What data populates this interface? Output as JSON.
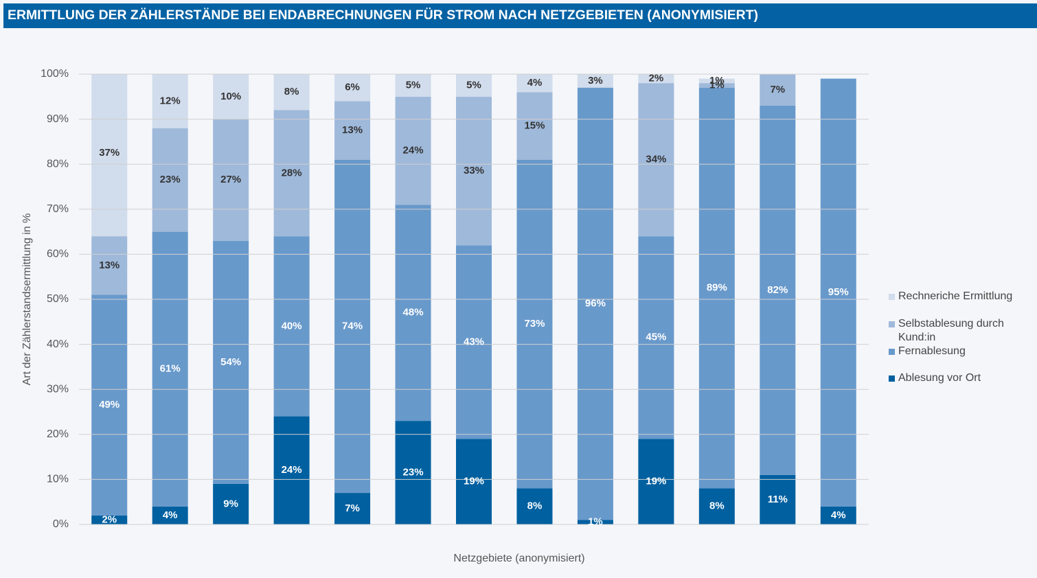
{
  "chart_data": {
    "type": "stacked_bar",
    "title": "ERMITTLUNG DER ZÄHLERSTÄNDE BEI ENDABRECHNUNGEN FÜR STROM NACH NETZGEBIETEN (ANONYMISIERT)",
    "xlabel": "Netzgebiete (anonymisiert)",
    "ylabel": "Art der Zählerstandsermittlung in %",
    "categories": [
      null,
      null,
      null,
      null,
      null,
      null,
      null,
      null,
      null,
      null,
      null,
      null,
      null
    ],
    "series": [
      {
        "name": "Ablesung vor Ort",
        "color": "#0060a0",
        "label_color": "#ffffff",
        "values": [
          2,
          4,
          9,
          24,
          7,
          23,
          19,
          8,
          1,
          19,
          8,
          11,
          4
        ],
        "value_labels": [
          "2%",
          "4%",
          "9%",
          "24%",
          "7%",
          "23%",
          "19%",
          "8%",
          "1%",
          "19%",
          "8%",
          "11%",
          "4%"
        ]
      },
      {
        "name": "Fernablesung",
        "color": "#6899cb",
        "label_color": "#ffffff",
        "values": [
          49,
          61,
          54,
          40,
          74,
          48,
          43,
          73,
          96,
          45,
          89,
          82,
          95
        ],
        "value_labels": [
          "49%",
          "61%",
          "54%",
          "40%",
          "74%",
          "48%",
          "43%",
          "73%",
          "96%",
          "45%",
          "89%",
          "82%",
          "95%"
        ]
      },
      {
        "name": "Selbstablesung durch Kund:in",
        "color": "#9fb9da",
        "label_color": "#333333",
        "values": [
          13,
          23,
          27,
          28,
          13,
          24,
          33,
          15,
          null,
          34,
          1,
          7,
          null
        ],
        "value_labels": [
          "13%",
          "23%",
          "27%",
          "28%",
          "13%",
          "24%",
          "33%",
          "15%",
          null,
          "34%",
          "1%",
          "7%",
          null
        ]
      },
      {
        "name": "Rechneriche Ermittlung",
        "color": "#d1dcec",
        "label_color": "#333333",
        "values": [
          37,
          12,
          10,
          8,
          6,
          5,
          5,
          4,
          3,
          2,
          1,
          null,
          null
        ],
        "value_labels": [
          "37%",
          "12%",
          "10%",
          "8%",
          "6%",
          "5%",
          "5%",
          "4%",
          "3%",
          "2%",
          "1%",
          null,
          null
        ]
      }
    ],
    "ylim": [
      0,
      100
    ],
    "yticks": [
      {
        "value": 0,
        "label": "0%"
      },
      {
        "value": 10,
        "label": "10%"
      },
      {
        "value": 20,
        "label": "20%"
      },
      {
        "value": 30,
        "label": "30%"
      },
      {
        "value": 40,
        "label": "40%"
      },
      {
        "value": 50,
        "label": "50%"
      },
      {
        "value": 60,
        "label": "60%"
      },
      {
        "value": 70,
        "label": "70%"
      },
      {
        "value": 80,
        "label": "80%"
      },
      {
        "value": 90,
        "label": "90%"
      },
      {
        "value": 100,
        "label": "100%"
      }
    ],
    "grid": true,
    "legend": "right"
  }
}
